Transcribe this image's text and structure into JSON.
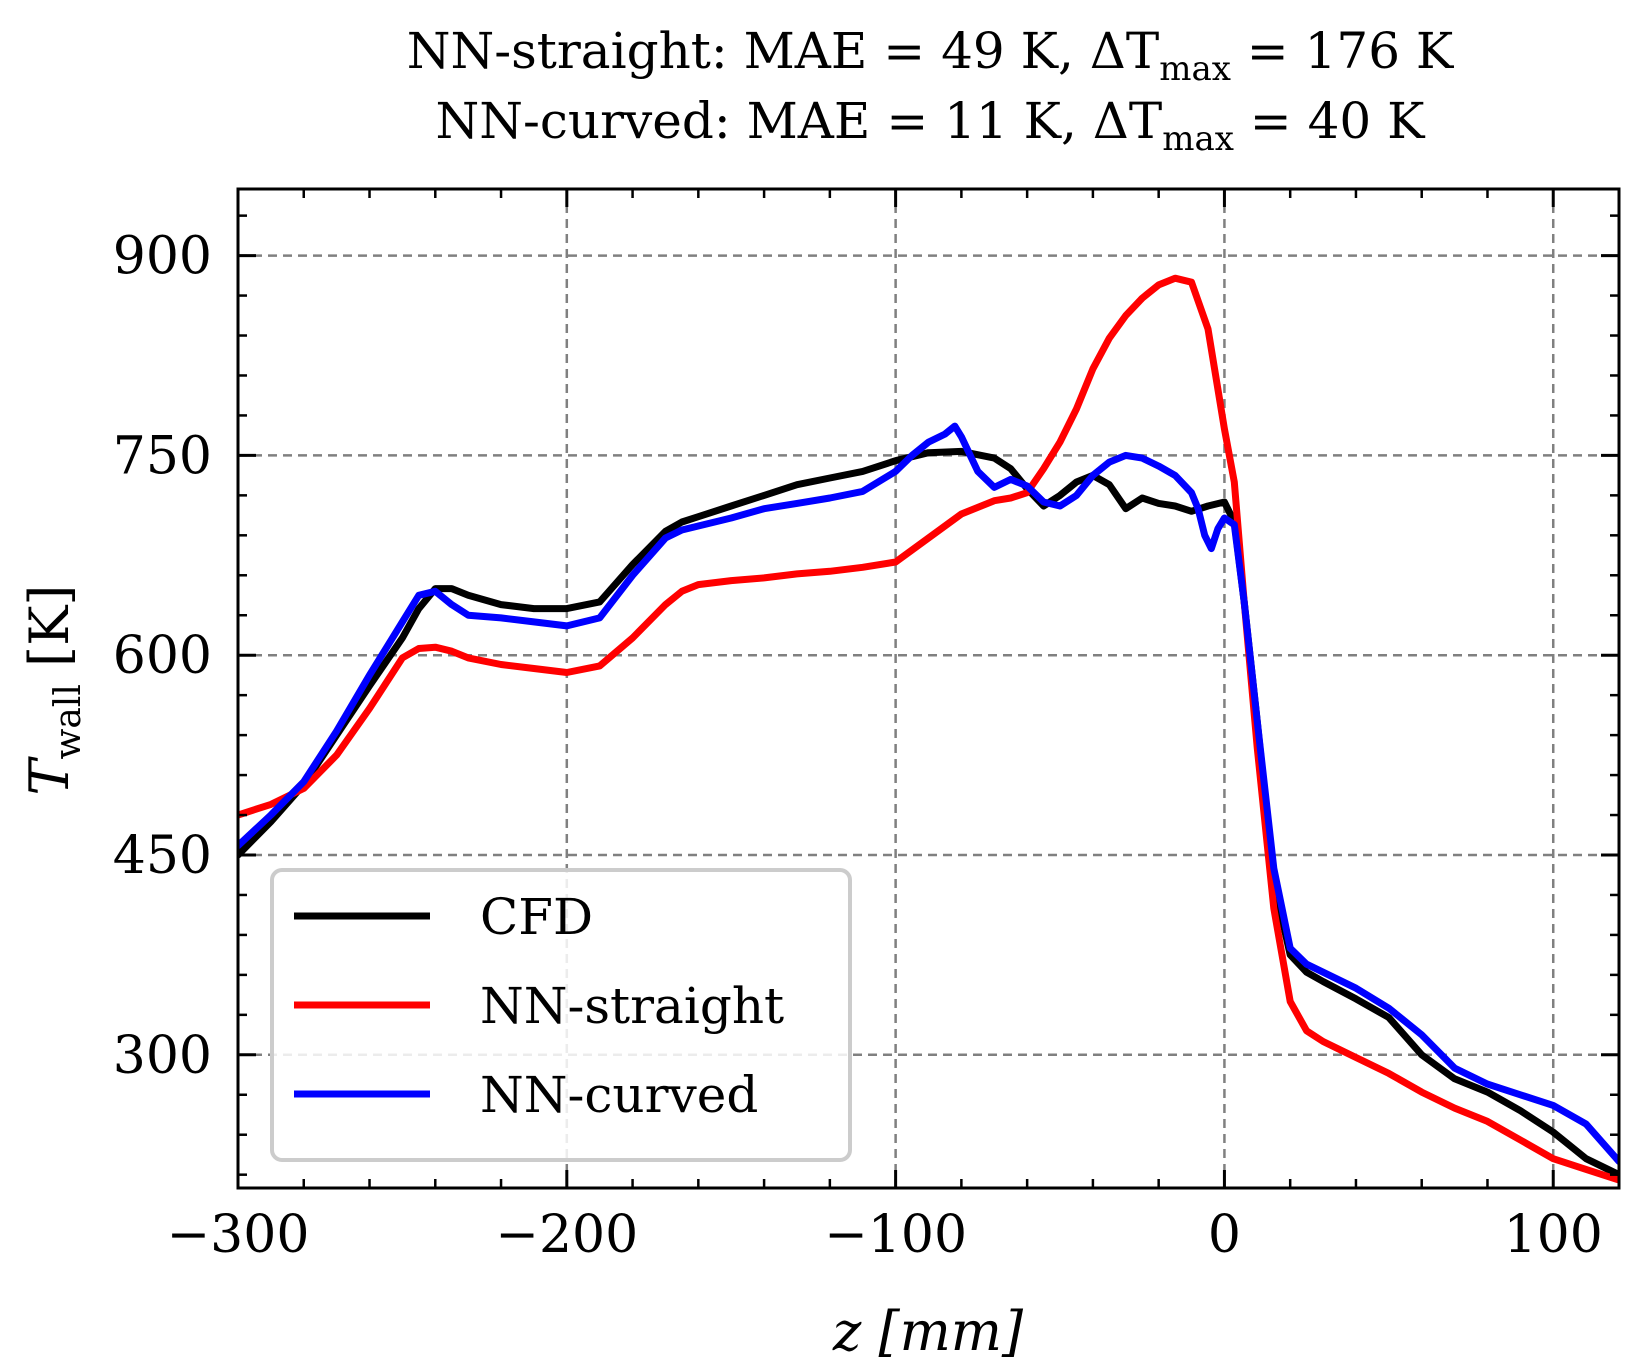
{
  "chart_data": {
    "type": "line",
    "title_lines": [
      "NN-straight:  MAE = 49 K, ΔT",
      "NN-curved:  MAE = 11 K, ΔT"
    ],
    "title_subscript": "max",
    "title_tails": [
      " = 176 K",
      " = 40 K"
    ],
    "xlabel": "z [mm]",
    "ylabel": "T",
    "ylabel_subscript": "wall",
    "ylabel_unit": " [K]",
    "xlim": [
      -300,
      120
    ],
    "ylim": [
      200,
      950
    ],
    "xticks": [
      -300,
      -200,
      -100,
      0,
      100
    ],
    "xtick_labels": [
      "−300",
      "−200",
      "−100",
      "0",
      "100"
    ],
    "yticks": [
      300,
      450,
      600,
      750,
      900
    ],
    "ytick_labels": [
      "300",
      "450",
      "600",
      "750",
      "900"
    ],
    "grid": true,
    "legend_position": "lower-left",
    "series": [
      {
        "name": "CFD",
        "color": "#000000",
        "x": [
          -300,
          -290,
          -280,
          -270,
          -260,
          -250,
          -245,
          -240,
          -235,
          -230,
          -220,
          -210,
          -200,
          -190,
          -180,
          -170,
          -165,
          -160,
          -150,
          -140,
          -130,
          -120,
          -110,
          -100,
          -90,
          -80,
          -70,
          -65,
          -60,
          -55,
          -50,
          -45,
          -40,
          -35,
          -30,
          -25,
          -20,
          -15,
          -10,
          -5,
          0,
          3,
          6,
          10,
          15,
          20,
          25,
          30,
          40,
          50,
          60,
          70,
          80,
          90,
          100,
          110,
          120
        ],
        "y": [
          450,
          475,
          503,
          540,
          577,
          613,
          635,
          650,
          650,
          645,
          638,
          635,
          635,
          640,
          668,
          693,
          700,
          704,
          712,
          720,
          728,
          733,
          738,
          746,
          752,
          753,
          748,
          740,
          725,
          712,
          720,
          730,
          735,
          728,
          710,
          718,
          714,
          712,
          708,
          712,
          715,
          700,
          640,
          550,
          430,
          375,
          362,
          355,
          342,
          328,
          300,
          282,
          272,
          258,
          242,
          222,
          210
        ]
      },
      {
        "name": "NN-straight",
        "color": "#ff0000",
        "x": [
          -300,
          -290,
          -280,
          -270,
          -260,
          -250,
          -245,
          -240,
          -235,
          -230,
          -220,
          -210,
          -200,
          -190,
          -180,
          -170,
          -165,
          -160,
          -150,
          -140,
          -130,
          -120,
          -110,
          -100,
          -90,
          -80,
          -70,
          -65,
          -60,
          -55,
          -50,
          -45,
          -40,
          -35,
          -30,
          -25,
          -20,
          -15,
          -10,
          -5,
          0,
          3,
          6,
          10,
          15,
          20,
          25,
          30,
          40,
          50,
          60,
          70,
          80,
          90,
          100,
          110,
          120
        ],
        "y": [
          480,
          488,
          500,
          525,
          560,
          598,
          605,
          606,
          603,
          598,
          593,
          590,
          587,
          592,
          613,
          638,
          648,
          653,
          656,
          658,
          661,
          663,
          666,
          670,
          688,
          706,
          716,
          718,
          722,
          740,
          760,
          785,
          815,
          838,
          855,
          868,
          878,
          883,
          880,
          845,
          770,
          730,
          640,
          530,
          410,
          340,
          318,
          310,
          298,
          286,
          272,
          260,
          250,
          236,
          222,
          214,
          206
        ]
      },
      {
        "name": "NN-curved",
        "color": "#0000ff",
        "x": [
          -300,
          -290,
          -280,
          -270,
          -260,
          -250,
          -245,
          -240,
          -235,
          -230,
          -220,
          -210,
          -200,
          -190,
          -180,
          -170,
          -165,
          -160,
          -150,
          -140,
          -130,
          -120,
          -110,
          -100,
          -95,
          -90,
          -85,
          -82,
          -80,
          -75,
          -70,
          -65,
          -60,
          -55,
          -50,
          -45,
          -40,
          -35,
          -30,
          -25,
          -20,
          -15,
          -10,
          -8,
          -6,
          -4,
          -2,
          0,
          3,
          6,
          10,
          15,
          20,
          25,
          30,
          40,
          50,
          60,
          70,
          80,
          90,
          100,
          110,
          120
        ],
        "y": [
          457,
          480,
          505,
          543,
          585,
          625,
          645,
          648,
          638,
          630,
          628,
          625,
          622,
          628,
          660,
          688,
          694,
          697,
          703,
          710,
          714,
          718,
          723,
          738,
          750,
          760,
          766,
          772,
          764,
          738,
          726,
          732,
          727,
          715,
          712,
          720,
          735,
          745,
          750,
          748,
          742,
          735,
          722,
          710,
          690,
          680,
          695,
          703,
          698,
          640,
          550,
          440,
          380,
          368,
          362,
          350,
          335,
          315,
          290,
          278,
          270,
          262,
          248,
          220
        ]
      }
    ]
  }
}
